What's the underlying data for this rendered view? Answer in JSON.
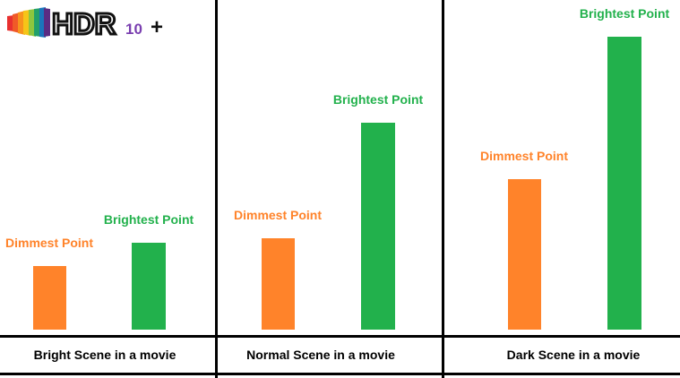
{
  "logo": {
    "text": "HDR10+"
  },
  "colors": {
    "dimmest": "#FF832A",
    "brightest": "#22B14C"
  },
  "chart_data": [
    {
      "type": "bar",
      "title": "Bright Scene in a movie",
      "categories": [
        "Dimmest Point",
        "Brightest Point"
      ],
      "values": [
        71,
        97
      ]
    },
    {
      "type": "bar",
      "title": "Normal Scene in a movie",
      "categories": [
        "Dimmest Point",
        "Brightest Point"
      ],
      "values": [
        102,
        231
      ]
    },
    {
      "type": "bar",
      "title": "Dark Scene in a movie",
      "categories": [
        "Dimmest Point",
        "Brightest Point"
      ],
      "values": [
        168,
        327
      ]
    }
  ]
}
